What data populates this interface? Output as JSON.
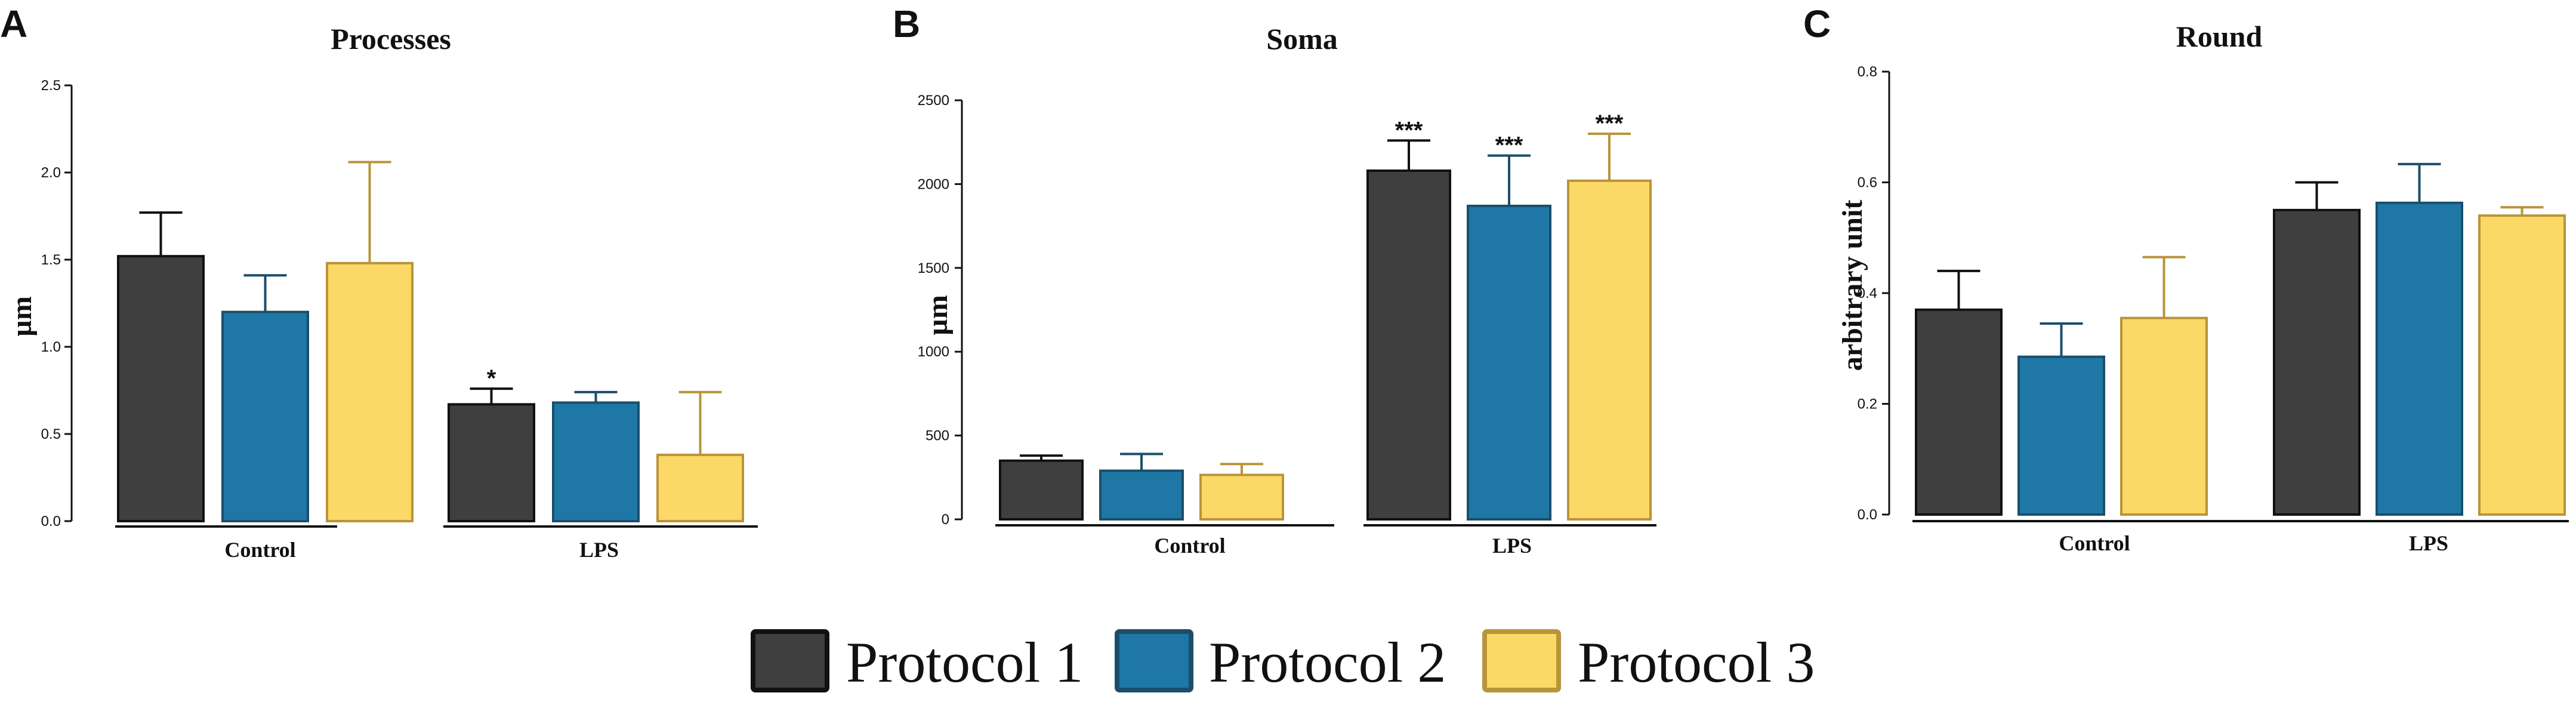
{
  "legend": [
    {
      "label": "Protocol 1",
      "color": "#3f3f3f",
      "border": "#111111"
    },
    {
      "label": "Protocol 2",
      "color": "#1f77a6",
      "border": "#1b4e6a"
    },
    {
      "label": "Protocol 3",
      "color": "#fcd966",
      "border": "#b8943a"
    }
  ],
  "chart_data": [
    {
      "panel": "A",
      "type": "bar",
      "title": "Processes",
      "ylabel": "µm",
      "xlabel": "",
      "ylim": [
        0,
        2.5
      ],
      "yticks": [
        "0.0",
        "0.5",
        "1.0",
        "1.5",
        "2.0",
        "2.5"
      ],
      "ytick_values": [
        0,
        0.5,
        1.0,
        1.5,
        2.0,
        2.5
      ],
      "categories": [
        "Control",
        "LPS"
      ],
      "series": [
        {
          "name": "Protocol 1",
          "values": [
            1.52,
            0.67
          ],
          "errors": [
            0.25,
            0.09
          ],
          "sig": [
            "",
            "*"
          ]
        },
        {
          "name": "Protocol 2",
          "values": [
            1.2,
            0.68
          ],
          "errors": [
            0.21,
            0.06
          ],
          "sig": [
            "",
            ""
          ]
        },
        {
          "name": "Protocol 3",
          "values": [
            1.48,
            0.38
          ],
          "errors": [
            0.58,
            0.36
          ],
          "sig": [
            "",
            ""
          ]
        }
      ]
    },
    {
      "panel": "B",
      "type": "bar",
      "title": "Soma",
      "ylabel": "µm",
      "xlabel": "",
      "ylim": [
        0,
        2500
      ],
      "yticks": [
        "0",
        "500",
        "1000",
        "1500",
        "2000",
        "2500"
      ],
      "ytick_values": [
        0,
        500,
        1000,
        1500,
        2000,
        2500
      ],
      "categories": [
        "Control",
        "LPS"
      ],
      "series": [
        {
          "name": "Protocol 1",
          "values": [
            350,
            2080
          ],
          "errors": [
            30,
            180
          ],
          "sig": [
            "",
            "***"
          ]
        },
        {
          "name": "Protocol 2",
          "values": [
            290,
            1870
          ],
          "errors": [
            100,
            300
          ],
          "sig": [
            "",
            "***"
          ]
        },
        {
          "name": "Protocol 3",
          "values": [
            265,
            2020
          ],
          "errors": [
            65,
            280
          ],
          "sig": [
            "",
            "***"
          ]
        }
      ]
    },
    {
      "panel": "C",
      "type": "bar",
      "title": "Round",
      "ylabel": "arbitrary unit",
      "xlabel": "",
      "ylim": [
        0,
        0.8
      ],
      "yticks": [
        "0.0",
        "0.2",
        "0.4",
        "0.6",
        "0.8"
      ],
      "ytick_values": [
        0,
        0.2,
        0.4,
        0.6,
        0.8
      ],
      "categories": [
        "Control",
        "LPS"
      ],
      "series": [
        {
          "name": "Protocol 1",
          "values": [
            0.37,
            0.55
          ],
          "errors": [
            0.07,
            0.05
          ],
          "sig": [
            "",
            ""
          ]
        },
        {
          "name": "Protocol 2",
          "values": [
            0.285,
            0.563
          ],
          "errors": [
            0.06,
            0.07
          ],
          "sig": [
            "",
            ""
          ]
        },
        {
          "name": "Protocol 3",
          "values": [
            0.355,
            0.54
          ],
          "errors": [
            0.11,
            0.015
          ],
          "sig": [
            "",
            ""
          ]
        }
      ]
    }
  ]
}
